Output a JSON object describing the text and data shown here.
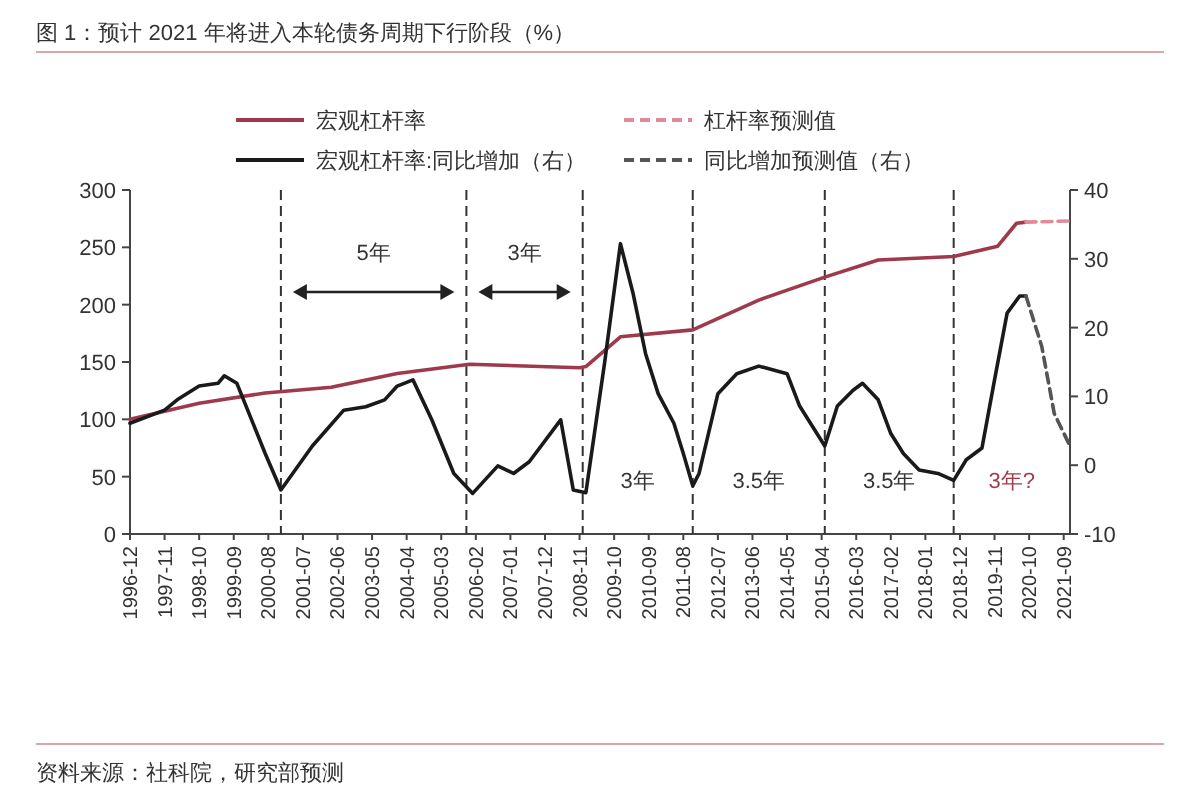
{
  "chart_data": {
    "type": "line",
    "title": "图 1：预计 2021 年将进入本轮债务周期下行阶段（%）",
    "legend": "top",
    "series": [
      {
        "name": "宏观杠杆率",
        "color": "#9e3a4c",
        "line_style": "solid",
        "x": [
          "1996-12",
          "1998-10",
          "2000-07",
          "2002-04",
          "2004-01",
          "2005-12",
          "2008-11",
          "2009-01",
          "2009-12",
          "2011-11",
          "2013-08",
          "2015-05",
          "2016-10",
          "2018-10",
          "2019-12",
          "2020-06",
          "2020-09"
        ],
        "values": [
          100,
          114,
          123,
          128,
          140,
          148,
          145,
          146,
          172,
          178,
          204,
          224,
          239,
          242,
          251,
          271,
          272
        ]
      },
      {
        "name": "杠杆率预测值",
        "color": "#e08a9a",
        "line_style": "dashed",
        "x": [
          "2020-09",
          "2021-11"
        ],
        "values": [
          272,
          273
        ]
      },
      {
        "name": "宏观杠杆率:同比增加（右）",
        "color": "#1a1a1a",
        "line_style": "solid",
        "axis": "y2",
        "x": [
          "1996-12",
          "1997-11",
          "1998-03",
          "1998-10",
          "1999-04",
          "1999-06",
          "1999-10",
          "2000-07",
          "2000-12",
          "2001-10",
          "2002-08",
          "2003-03",
          "2003-09",
          "2004-01",
          "2004-06",
          "2004-12",
          "2005-07",
          "2006-01",
          "2006-09",
          "2007-02",
          "2007-07",
          "2008-05",
          "2008-09",
          "2009-01",
          "2009-07",
          "2009-12",
          "2010-04",
          "2010-08",
          "2010-12",
          "2011-05",
          "2011-08",
          "2011-11",
          "2012-01",
          "2012-07",
          "2013-01",
          "2013-08",
          "2014-05",
          "2014-09",
          "2015-01",
          "2015-05",
          "2015-09",
          "2016-02",
          "2016-05",
          "2016-10",
          "2017-02",
          "2017-06",
          "2017-11",
          "2018-05",
          "2018-10",
          "2019-02",
          "2019-07",
          "2019-11",
          "2020-03",
          "2020-07",
          "2020-09"
        ],
        "values": [
          6.1,
          8.0,
          9.5,
          11.5,
          11.9,
          13,
          11.9,
          1.7,
          -3.6,
          2.8,
          8.0,
          8.5,
          9.5,
          11.5,
          12.4,
          6.6,
          -1.2,
          -4.1,
          -0.1,
          -1.2,
          0.5,
          6.6,
          -3.6,
          -4.0,
          15,
          32.2,
          25,
          16.2,
          10.4,
          6.1,
          1.7,
          -3.0,
          -1.2,
          10.4,
          13.3,
          14.4,
          13.3,
          8.6,
          5.7,
          2.8,
          8.6,
          10.9,
          11.9,
          9.5,
          4.6,
          1.7,
          -0.7,
          -1.2,
          -2.2,
          0.8,
          2.5,
          12.4,
          22.1,
          24.6,
          24.6
        ]
      },
      {
        "name": "同比增加预测值（右）",
        "color": "#555555",
        "line_style": "dashed",
        "axis": "y2",
        "x": [
          "2020-09",
          "2021-02",
          "2021-06",
          "2021-11"
        ],
        "values": [
          24.6,
          17.3,
          7.5,
          2.8
        ]
      }
    ],
    "xlim": [
      "1996-12",
      "2021-11"
    ],
    "xticks": [
      "1996-12",
      "1997-11",
      "1998-10",
      "1999-09",
      "2000-08",
      "2001-07",
      "2002-06",
      "2003-05",
      "2004-04",
      "2005-03",
      "2006-02",
      "2007-01",
      "2007-12",
      "2008-11",
      "2009-10",
      "2010-09",
      "2011-08",
      "2012-07",
      "2013-06",
      "2014-05",
      "2015-04",
      "2016-03",
      "2017-02",
      "2018-01",
      "2018-12",
      "2019-11",
      "2020-10",
      "2021-09"
    ],
    "ylim": [
      0,
      300
    ],
    "yticks": [
      0,
      50,
      100,
      150,
      200,
      250,
      300
    ],
    "y2lim": [
      -10,
      40
    ],
    "y2ticks": [
      -10,
      0,
      10,
      20,
      30,
      40
    ],
    "ref_lines": [
      {
        "axis": "x",
        "value": "2000-12",
        "line_style": "dashed",
        "color": "#333333"
      },
      {
        "axis": "x",
        "value": "2005-11",
        "line_style": "dashed",
        "color": "#333333"
      },
      {
        "axis": "x",
        "value": "2008-12",
        "line_style": "dashed",
        "color": "#333333"
      },
      {
        "axis": "x",
        "value": "2011-11",
        "line_style": "dashed",
        "color": "#333333"
      },
      {
        "axis": "x",
        "value": "2015-05",
        "line_style": "dashed",
        "color": "#333333"
      },
      {
        "axis": "x",
        "value": "2018-10",
        "line_style": "dashed",
        "color": "#333333"
      }
    ],
    "annotations": [
      "5年",
      "3年",
      "3年",
      "3.5年",
      "3.5年",
      "3年?",
      "资料来源：社科院，研究部预测"
    ]
  }
}
